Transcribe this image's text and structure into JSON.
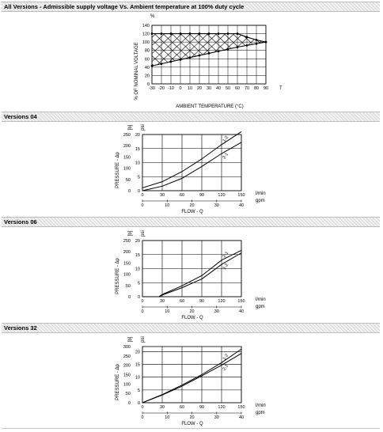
{
  "sections": [
    {
      "title": "All Versions - Admissible supply voltage Vs. Ambient temperature at 100% duty cycle"
    },
    {
      "title": "Versions 04"
    },
    {
      "title": "Versions 06"
    },
    {
      "title": "Versions 32"
    }
  ],
  "chart_data": [
    {
      "type": "area",
      "title": "All Versions - Admissible supply voltage Vs. Ambient temperature at 100% duty cycle",
      "xlabel": "AMBIENT TEMPERATURE (°C)",
      "ylabel": "% OF NOMINAL VOLTAGE",
      "x_unit": "T",
      "y_unit": "%",
      "x_ticks": [
        -30,
        -20,
        -10,
        0,
        10,
        20,
        30,
        40,
        50,
        60,
        70,
        80,
        90
      ],
      "y_ticks": [
        0,
        20,
        40,
        60,
        80,
        100,
        120,
        140
      ],
      "xlim": [
        -30,
        90
      ],
      "ylim": [
        0,
        140
      ],
      "grid": true,
      "series": [
        {
          "x": [
            -30,
            -20,
            -10,
            0,
            10,
            20,
            30,
            40,
            50,
            60,
            70,
            80,
            90
          ],
          "y": [
            120,
            120,
            120,
            120,
            120,
            120,
            120,
            120,
            120,
            120,
            112,
            105,
            100
          ]
        },
        {
          "x": [
            -30,
            -20,
            -10,
            0,
            10,
            20,
            30,
            40,
            50,
            60,
            70,
            80,
            90
          ],
          "y": [
            43,
            48,
            53,
            58,
            63,
            68,
            73,
            78,
            83,
            88,
            92,
            96,
            100
          ]
        }
      ]
    },
    {
      "type": "line",
      "ylabel": "PRESSURE - Δp",
      "xlabel": "FLOW - Q",
      "y_units": [
        "[b]",
        "psi"
      ],
      "x_units": [
        "l/min",
        "gpm"
      ],
      "x_ticks": [
        0,
        30,
        60,
        90,
        120,
        150
      ],
      "x2_ticks": [
        0,
        10,
        20,
        30,
        40
      ],
      "y_ticks": [
        0,
        5,
        10,
        15,
        20
      ],
      "y2_ticks": [
        0,
        50,
        100,
        150,
        200,
        250
      ],
      "xlim": [
        0,
        150
      ],
      "ylim": [
        0,
        20
      ],
      "grid": true,
      "series": [
        {
          "name": "1-2",
          "x": [
            0,
            30,
            60,
            90,
            120,
            150
          ],
          "y": [
            1,
            3.2,
            6.8,
            11.3,
            16.4,
            21
          ]
        },
        {
          "name": "2-1",
          "x": [
            0,
            30,
            60,
            90,
            120,
            150
          ],
          "y": [
            0,
            1.6,
            4.4,
            8.6,
            13.2,
            17.2
          ]
        }
      ]
    },
    {
      "type": "line",
      "ylabel": "PRESSURE - Δp",
      "xlabel": "FLOW - Q",
      "y_units": [
        "[b]",
        "psi"
      ],
      "x_units": [
        "l/min",
        "gpm"
      ],
      "x_ticks": [
        0,
        30,
        60,
        90,
        120,
        150
      ],
      "x2_ticks": [
        0,
        10,
        20,
        30,
        40
      ],
      "y_ticks": [
        0,
        5,
        10,
        15,
        20
      ],
      "y2_ticks": [
        0,
        50,
        100,
        150,
        200,
        250
      ],
      "xlim": [
        0,
        150
      ],
      "ylim": [
        0,
        20
      ],
      "grid": true,
      "series": [
        {
          "name": "2-1",
          "x": [
            0,
            25,
            30,
            60,
            90,
            120,
            150
          ],
          "y": [
            0,
            0,
            0.8,
            3.9,
            7.5,
            13,
            16.5
          ]
        },
        {
          "name": "1-2",
          "x": [
            0,
            25,
            30,
            60,
            90,
            120,
            150
          ],
          "y": [
            0,
            0,
            0.6,
            3.2,
            6.3,
            11.5,
            15.6
          ]
        }
      ]
    },
    {
      "type": "line",
      "ylabel": "PRESSURE - Δp",
      "xlabel": "FLOW - Q",
      "y_units": [
        "[b]",
        "psi"
      ],
      "x_units": [
        "l/min",
        "gpm"
      ],
      "x_ticks": [
        0,
        30,
        60,
        90,
        120,
        150
      ],
      "x2_ticks": [
        0,
        10,
        20,
        30,
        40
      ],
      "y_ticks": [
        0,
        5,
        10,
        15,
        20
      ],
      "y2_ticks": [
        0,
        50,
        100,
        150,
        200,
        250,
        300
      ],
      "xlim": [
        0,
        150
      ],
      "ylim": [
        0,
        22
      ],
      "grid": true,
      "series": [
        {
          "name": "1-2",
          "x": [
            0,
            30,
            60,
            90,
            120,
            150
          ],
          "y": [
            0,
            3.2,
            6.9,
            11,
            15.7,
            21
          ]
        },
        {
          "name": "2-1",
          "x": [
            0,
            30,
            60,
            90,
            120,
            150
          ],
          "y": [
            0,
            3,
            6.5,
            10.5,
            14.7,
            19.3
          ]
        }
      ]
    }
  ]
}
